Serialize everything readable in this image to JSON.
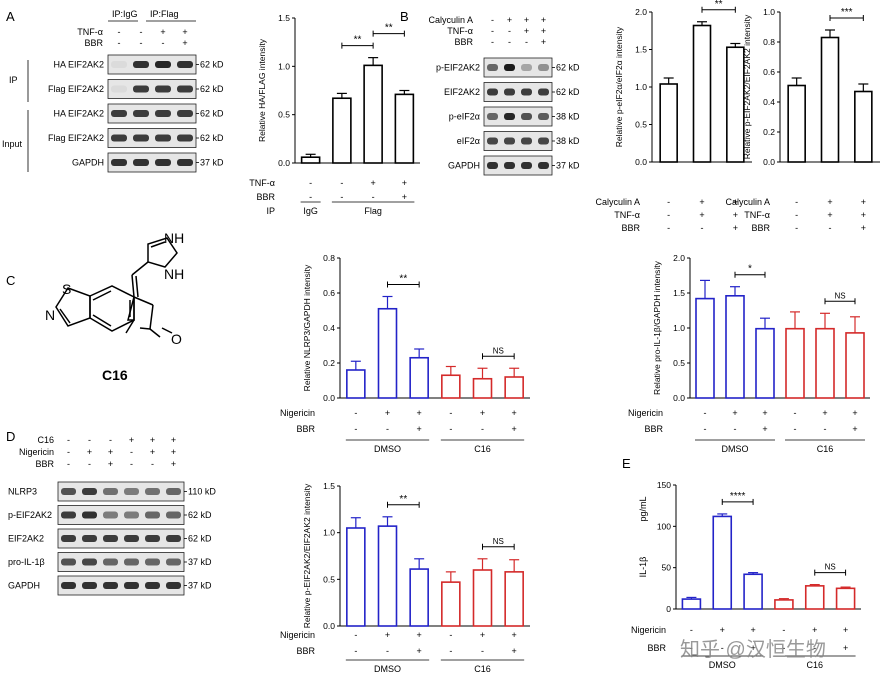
{
  "panels": {
    "A": "A",
    "B": "B",
    "C": "C",
    "D": "D",
    "E": "E"
  },
  "common": {
    "plus": "+",
    "minus": "-",
    "sig2": "**",
    "sig1": "*",
    "sig3": "***",
    "sig4": "****",
    "ns": "NS"
  },
  "A_blot": {
    "ip_igg": "IP:IgG",
    "ip_flag": "IP:Flag",
    "cond_labels": [
      "TNF-α",
      "BBR"
    ],
    "cond_values": [
      [
        "-",
        "-",
        "+",
        "+"
      ],
      [
        "-",
        "-",
        "-",
        "+"
      ]
    ],
    "side_ip": "IP",
    "side_input": "Input",
    "rows": [
      {
        "label": "HA  EIF2AK2",
        "kd": "62 kD"
      },
      {
        "label": "Flag EIF2AK2",
        "kd": "62 kD"
      },
      {
        "label": "HA  EIF2AK2",
        "kd": "62 kD"
      },
      {
        "label": "Flag EIF2AK2",
        "kd": "62 kD"
      },
      {
        "label": "GAPDH",
        "kd": "37 kD"
      }
    ]
  },
  "B_blot": {
    "cond_labels": [
      "Calyculin A",
      "TNF-α",
      "BBR"
    ],
    "cond_values": [
      [
        "-",
        "+",
        "+",
        "+"
      ],
      [
        "-",
        "-",
        "+",
        "+"
      ],
      [
        "-",
        "-",
        "-",
        "+"
      ]
    ],
    "rows": [
      {
        "label": "p-EIF2AK2",
        "kd": "62 kD"
      },
      {
        "label": "EIF2AK2",
        "kd": "62 kD"
      },
      {
        "label": "p-eIF2α",
        "kd": "38 kD"
      },
      {
        "label": "eIF2α",
        "kd": "38 kD"
      },
      {
        "label": "GAPDH",
        "kd": "37 kD"
      }
    ]
  },
  "D_blot": {
    "cond_labels": [
      "C16",
      "Nigericin",
      "BBR"
    ],
    "cond_values": [
      [
        "-",
        "-",
        "-",
        "+",
        "+",
        "+"
      ],
      [
        "-",
        "+",
        "+",
        "-",
        "+",
        "+"
      ],
      [
        "-",
        "-",
        "+",
        "-",
        "-",
        "+"
      ]
    ],
    "rows": [
      {
        "label": "NLRP3",
        "kd": "110 kD"
      },
      {
        "label": "p-EIF2AK2",
        "kd": "62 kD"
      },
      {
        "label": "EIF2AK2",
        "kd": "62 kD"
      },
      {
        "label": "pro-IL-1β",
        "kd": "37 kD"
      },
      {
        "label": "GAPDH",
        "kd": "37 kD"
      }
    ]
  },
  "C_structure": {
    "name": "C16",
    "atoms": [
      "S",
      "N",
      "NH",
      "NH",
      "O"
    ]
  },
  "chart_data": [
    {
      "id": "A_bar",
      "type": "bar",
      "ylabel": "Relative HA/FLAG intensity",
      "ylim": [
        0,
        1.5
      ],
      "ticks": [
        "0.0",
        "0.5",
        "1.0",
        "1.5"
      ],
      "values": [
        0.06,
        0.67,
        1.01,
        0.71
      ],
      "errors": [
        0.03,
        0.05,
        0.08,
        0.04
      ],
      "color": "#000",
      "factor_rows": [
        {
          "label": "TNF-α",
          "values": [
            "-",
            "-",
            "+",
            "+"
          ]
        },
        {
          "label": "BBR",
          "values": [
            "-",
            "-",
            "-",
            "+"
          ]
        },
        {
          "label": "IP",
          "values": [
            "IgG",
            "Flag"
          ]
        }
      ],
      "sig": [
        {
          "from": 1,
          "to": 2,
          "text": "**"
        },
        {
          "from": 2,
          "to": 3,
          "text": "**"
        }
      ]
    },
    {
      "id": "B_bar1",
      "type": "bar",
      "ylabel": "Relative p-eIF2α/eIF2α intensity",
      "ylim": [
        0,
        2.0
      ],
      "ticks": [
        "0.0",
        "0.5",
        "1.0",
        "1.5",
        "2.0"
      ],
      "values": [
        1.04,
        1.82,
        1.53
      ],
      "errors": [
        0.08,
        0.05,
        0.05
      ],
      "color": "#000",
      "factor_rows": [
        {
          "label": "Calyculin A",
          "values": [
            "-",
            "+",
            "+"
          ]
        },
        {
          "label": "TNF-α",
          "values": [
            "-",
            "+",
            "+"
          ]
        },
        {
          "label": "BBR",
          "values": [
            "-",
            "-",
            "+"
          ]
        }
      ],
      "sig": [
        {
          "from": 1,
          "to": 2,
          "text": "**"
        }
      ]
    },
    {
      "id": "B_bar2",
      "type": "bar",
      "ylabel": "Relative p-EIF2AK2/EIF2AK2 intensity",
      "ylim": [
        0,
        1.0
      ],
      "ticks": [
        "0.0",
        "0.2",
        "0.4",
        "0.6",
        "0.8",
        "1.0"
      ],
      "values": [
        0.51,
        0.83,
        0.47
      ],
      "errors": [
        0.05,
        0.05,
        0.05
      ],
      "color": "#000",
      "factor_rows": [
        {
          "label": "Calyculin A",
          "values": [
            "-",
            "+",
            "+"
          ]
        },
        {
          "label": "TNF-α",
          "values": [
            "-",
            "+",
            "+"
          ]
        },
        {
          "label": "BBR",
          "values": [
            "-",
            "-",
            "+"
          ]
        }
      ],
      "sig": [
        {
          "from": 1,
          "to": 2,
          "text": "***"
        }
      ]
    },
    {
      "id": "C_nlrp3",
      "type": "bar",
      "ylabel": "Relative NLRP3/GAPDH intensity",
      "ylim": [
        0,
        0.8
      ],
      "ticks": [
        "0.0",
        "0.2",
        "0.4",
        "0.6",
        "0.8"
      ],
      "values": [
        0.16,
        0.51,
        0.23,
        0.13,
        0.11,
        0.12
      ],
      "errors": [
        0.05,
        0.07,
        0.05,
        0.05,
        0.06,
        0.05
      ],
      "colors": [
        "#2323c8",
        "#2323c8",
        "#2323c8",
        "#d42a2a",
        "#d42a2a",
        "#d42a2a"
      ],
      "factor_rows": [
        {
          "label": "Nigericin",
          "values": [
            "-",
            "+",
            "+",
            "-",
            "+",
            "+"
          ]
        },
        {
          "label": "BBR",
          "values": [
            "-",
            "-",
            "+",
            "-",
            "-",
            "+"
          ]
        }
      ],
      "groups": [
        "DMSO",
        "C16"
      ],
      "sig": [
        {
          "from": 1,
          "to": 2,
          "text": "**"
        },
        {
          "from": 4,
          "to": 5,
          "text": "NS"
        }
      ]
    },
    {
      "id": "C_proil",
      "type": "bar",
      "ylabel": "Relative pro-IL-1β/GAPDH intensity",
      "ylim": [
        0,
        2.0
      ],
      "ticks": [
        "0.0",
        "0.5",
        "1.0",
        "1.5",
        "2.0"
      ],
      "values": [
        1.42,
        1.46,
        0.99,
        0.99,
        0.99,
        0.93
      ],
      "errors": [
        0.26,
        0.13,
        0.15,
        0.24,
        0.22,
        0.23
      ],
      "colors": [
        "#2323c8",
        "#2323c8",
        "#2323c8",
        "#d42a2a",
        "#d42a2a",
        "#d42a2a"
      ],
      "factor_rows": [
        {
          "label": "Nigericin",
          "values": [
            "-",
            "+",
            "+",
            "-",
            "+",
            "+"
          ]
        },
        {
          "label": "BBR",
          "values": [
            "-",
            "-",
            "+",
            "-",
            "-",
            "+"
          ]
        }
      ],
      "groups": [
        "DMSO",
        "C16"
      ],
      "sig": [
        {
          "from": 1,
          "to": 2,
          "text": "*"
        },
        {
          "from": 4,
          "to": 5,
          "text": "NS"
        }
      ]
    },
    {
      "id": "D_pEIF",
      "type": "bar",
      "ylabel": "Relative p-EIF2AK2/EIF2AK2 intensity",
      "ylim": [
        0,
        1.5
      ],
      "ticks": [
        "0.0",
        "0.5",
        "1.0",
        "1.5"
      ],
      "values": [
        1.05,
        1.07,
        0.61,
        0.47,
        0.6,
        0.58
      ],
      "errors": [
        0.11,
        0.1,
        0.11,
        0.11,
        0.12,
        0.13
      ],
      "colors": [
        "#2323c8",
        "#2323c8",
        "#2323c8",
        "#d42a2a",
        "#d42a2a",
        "#d42a2a"
      ],
      "factor_rows": [
        {
          "label": "Nigericin",
          "values": [
            "-",
            "+",
            "+",
            "-",
            "+",
            "+"
          ]
        },
        {
          "label": "BBR",
          "values": [
            "-",
            "-",
            "+",
            "-",
            "-",
            "+"
          ]
        }
      ],
      "groups": [
        "DMSO",
        "C16"
      ],
      "sig": [
        {
          "from": 1,
          "to": 2,
          "text": "**"
        },
        {
          "from": 4,
          "to": 5,
          "text": "NS"
        }
      ]
    },
    {
      "id": "E_il1b",
      "type": "bar",
      "ylabel": "IL-1β",
      "yunit": "pg/mL",
      "ylim": [
        0,
        150
      ],
      "ticks": [
        "0",
        "50",
        "100",
        "150"
      ],
      "values": [
        12,
        112,
        42,
        11,
        28,
        25
      ],
      "errors": [
        2,
        3,
        2,
        1.5,
        1.5,
        1.5
      ],
      "colors": [
        "#2323c8",
        "#2323c8",
        "#2323c8",
        "#d42a2a",
        "#d42a2a",
        "#d42a2a"
      ],
      "factor_rows": [
        {
          "label": "Nigericin",
          "values": [
            "-",
            "+",
            "+",
            "-",
            "+",
            "+"
          ]
        },
        {
          "label": "BBR",
          "values": [
            "-",
            "-",
            "+",
            "-",
            "-",
            "+"
          ]
        }
      ],
      "groups": [
        "DMSO",
        "C16"
      ],
      "sig": [
        {
          "from": 1,
          "to": 2,
          "text": "****"
        },
        {
          "from": 4,
          "to": 5,
          "text": "NS"
        }
      ]
    }
  ],
  "watermark": "知乎 @汉恒生物"
}
